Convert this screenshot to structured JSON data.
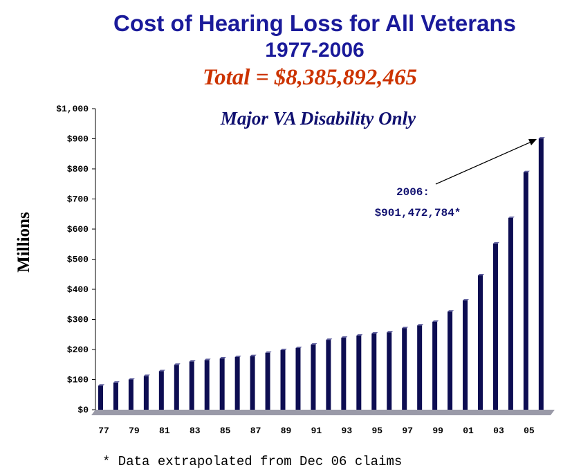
{
  "chart_data": {
    "type": "bar",
    "title": "Cost of Hearing Loss for All Veterans",
    "subtitle": "1977-2006",
    "total": "Total = $8,385,892,465",
    "annotation_title": "Major VA Disability Only",
    "callout_year": "2006:",
    "callout_value": "$901,472,784*",
    "ylabel": "Millions",
    "footnote": "*   Data extrapolated from Dec 06 claims",
    "categories": [
      "77",
      null,
      "79",
      null,
      "81",
      null,
      "83",
      null,
      "85",
      null,
      "87",
      null,
      "89",
      null,
      "91",
      null,
      "93",
      null,
      "95",
      null,
      "97",
      null,
      "99",
      null,
      "01",
      null,
      "03",
      null,
      "05",
      null
    ],
    "values": [
      80,
      90,
      100,
      112,
      128,
      149,
      160,
      165,
      170,
      175,
      178,
      189,
      198,
      205,
      216,
      232,
      239,
      246,
      253,
      257,
      271,
      280,
      292,
      326,
      363,
      446,
      552,
      637,
      789,
      901
    ],
    "color": "#0d0d52",
    "ylim": [
      0,
      1000
    ],
    "yticks": [
      {
        "value": 0,
        "label": "$0"
      },
      {
        "value": 100,
        "label": "$100"
      },
      {
        "value": 200,
        "label": "$200"
      },
      {
        "value": 300,
        "label": "$300"
      },
      {
        "value": 400,
        "label": "$400"
      },
      {
        "value": 500,
        "label": "$500"
      },
      {
        "value": 600,
        "label": "$600"
      },
      {
        "value": 700,
        "label": "$700"
      },
      {
        "value": 800,
        "label": "$800"
      },
      {
        "value": 900,
        "label": "$900"
      },
      {
        "value": 1000,
        "label": "$1,000"
      }
    ]
  }
}
